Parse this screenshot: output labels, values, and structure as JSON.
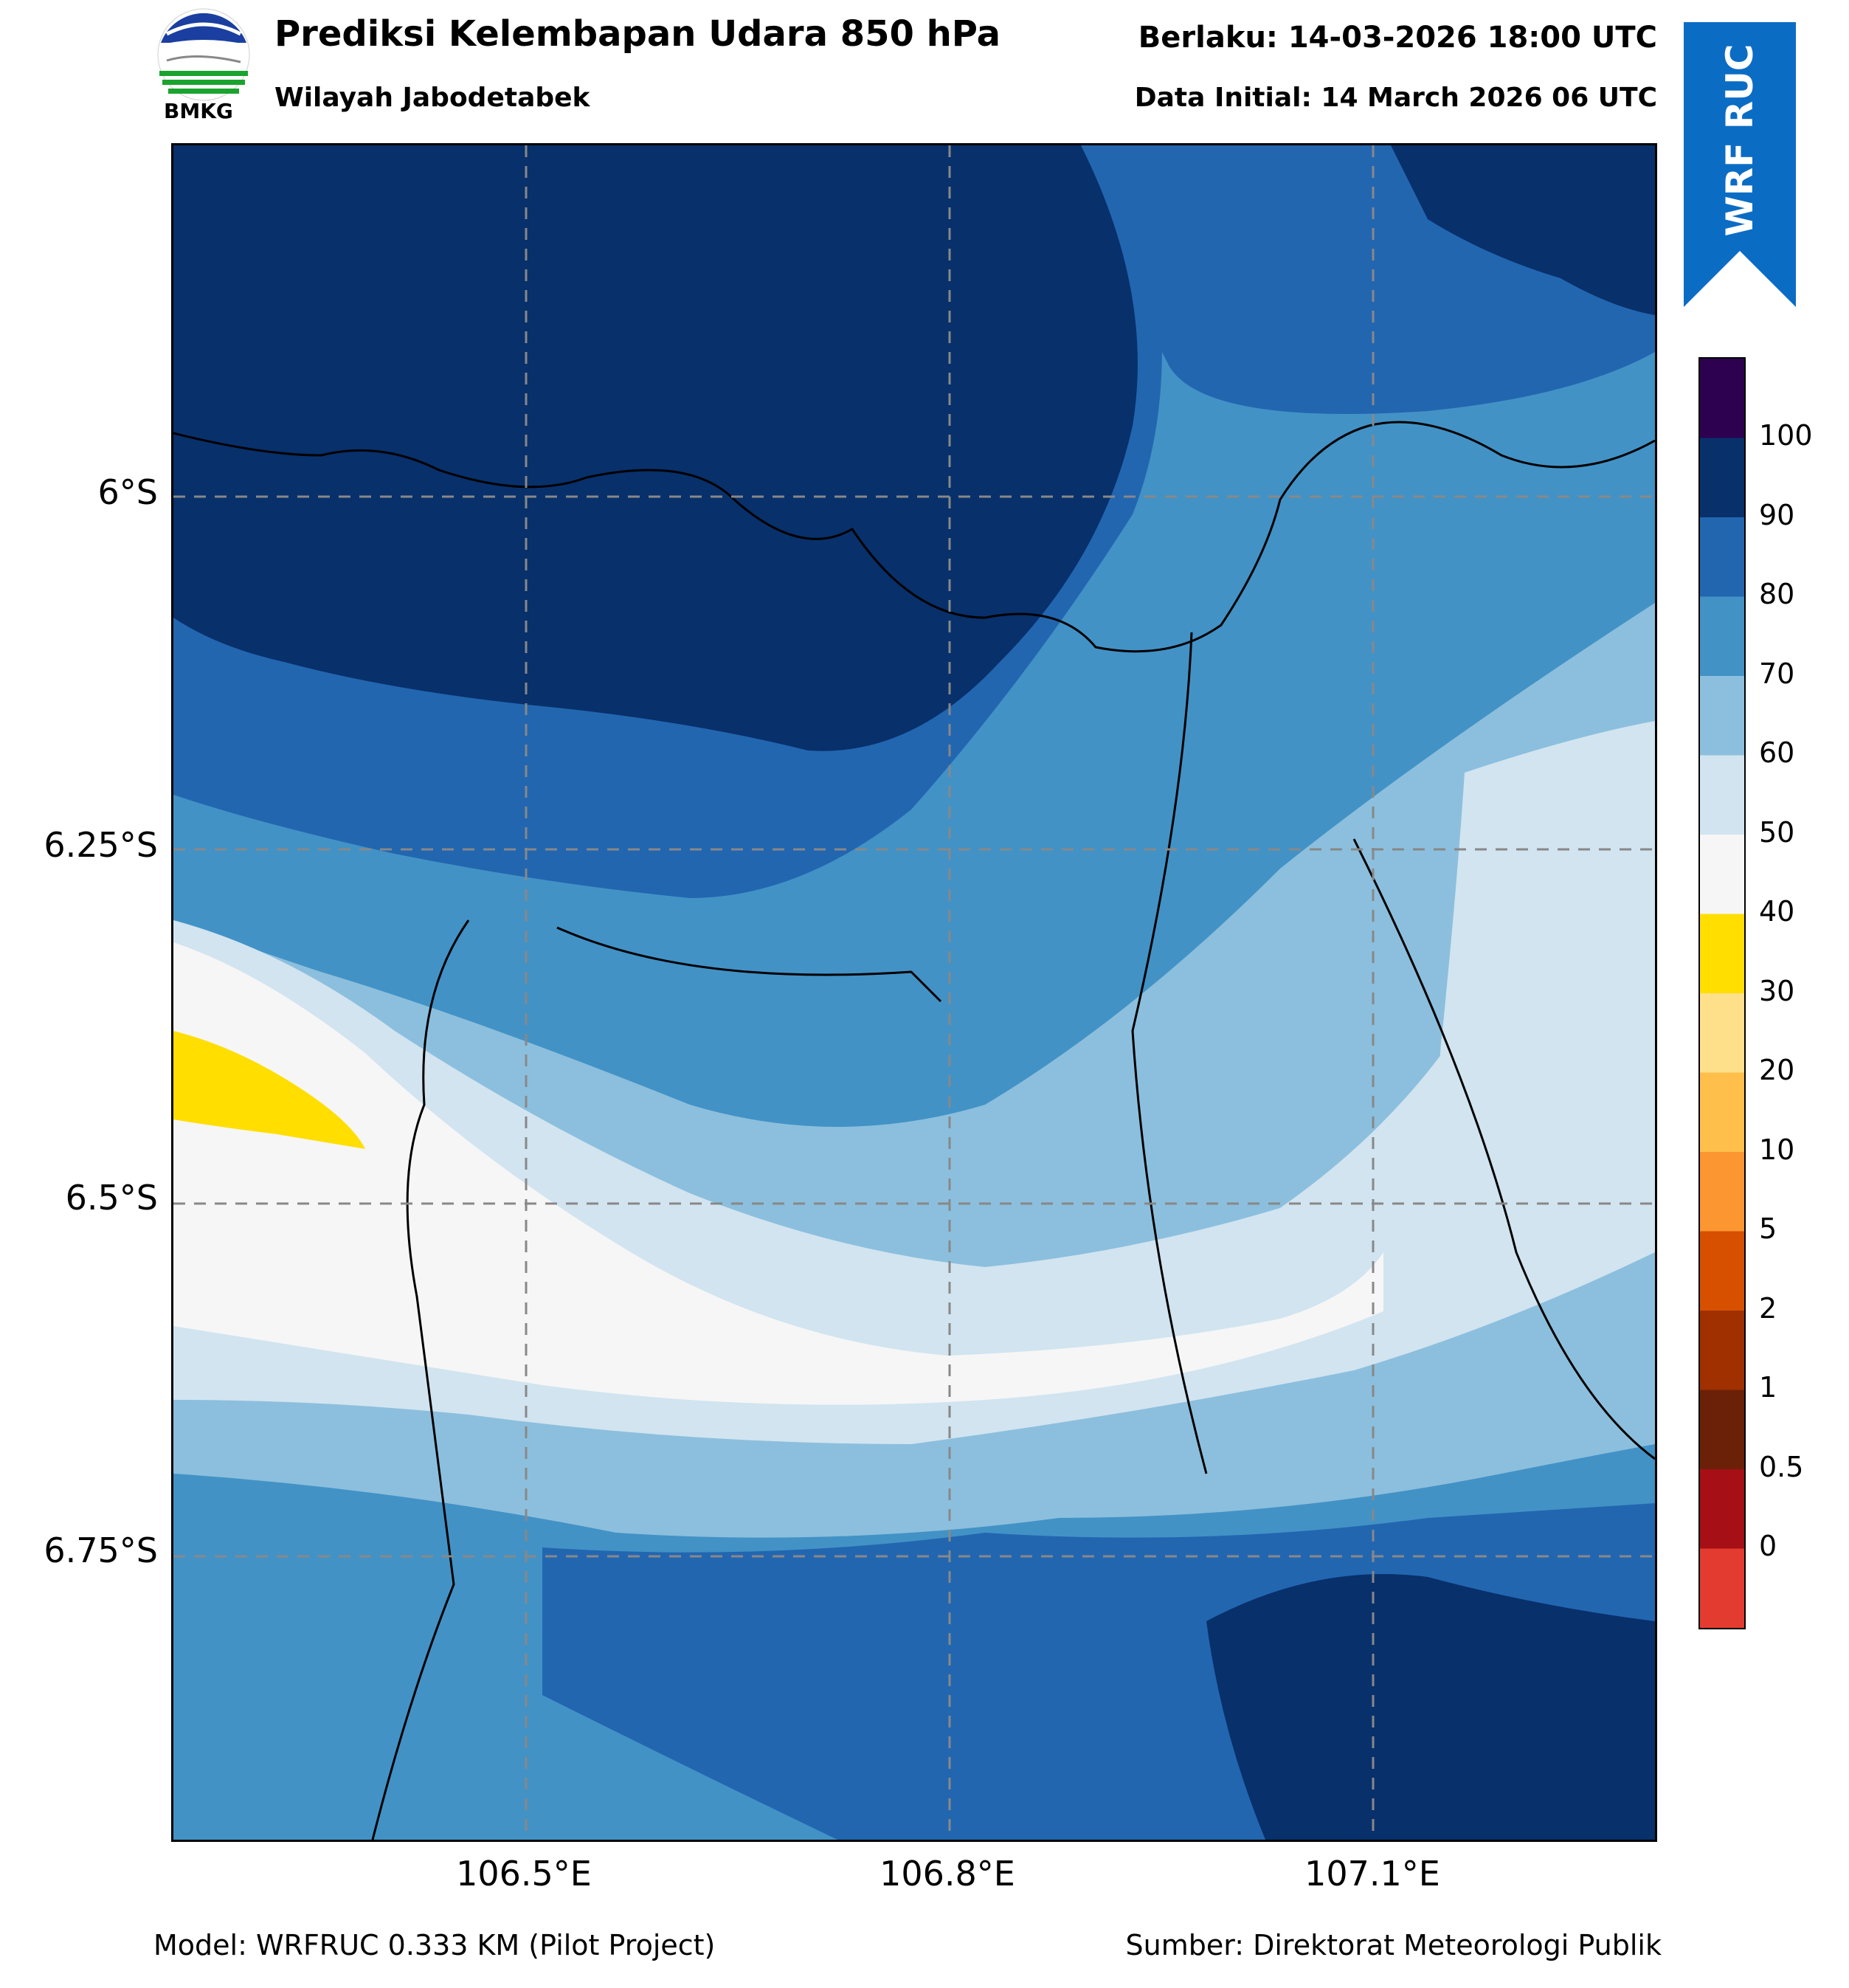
{
  "header": {
    "title": "Prediksi Kelembapan Udara 850 hPa",
    "subtitle": "Wilayah Jabodetabek",
    "valid_time": "Berlaku: 14-03-2026 18:00 UTC",
    "init_time": "Data Initial: 14 March 2026 06 UTC",
    "logo_text": "BMKG",
    "badge_text": "WRF RUC",
    "badge_color": "#0b6cc4"
  },
  "map": {
    "lat_labels": [
      "6°S",
      "6.25°S",
      "6.5°S",
      "6.75°S"
    ],
    "lon_labels": [
      "106.5°E",
      "106.8°E",
      "107.1°E"
    ],
    "colors": {
      "very_dark_blue": "#08306b",
      "dark_blue": "#2266b0",
      "medium_blue": "#4292c6",
      "light_blue": "#8cbfdd",
      "pale_blue": "#d1e4f0",
      "near_white": "#f6f6f6",
      "yellow": "#ffde00"
    }
  },
  "colorbar": {
    "labels": [
      "100",
      "90",
      "80",
      "70",
      "60",
      "50",
      "40",
      "30",
      "20",
      "10",
      "5",
      "2",
      "1",
      "0.5",
      "0"
    ],
    "colors": [
      "#2d0050",
      "#08306b",
      "#2266b0",
      "#4292c6",
      "#8cbfdd",
      "#d1e4f0",
      "#f6f6f6",
      "#ffde00",
      "#ffe08a",
      "#ffbf4a",
      "#fc9630",
      "#d65000",
      "#a03000",
      "#6b2008",
      "#a50f15",
      "#e33b2f"
    ]
  },
  "footer": {
    "model": "Model: WRFRUC 0.333 KM (Pilot Project)",
    "source": "Sumber: Direktorat Meteorologi Publik"
  }
}
